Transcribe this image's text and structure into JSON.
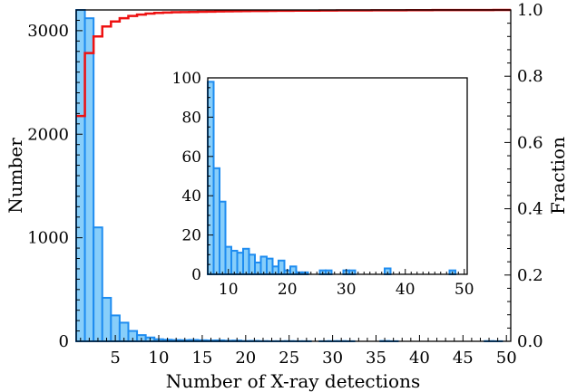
{
  "chart_data": [
    {
      "type": "bar",
      "role": "main-histogram",
      "xlabel": "Number of X-ray detections",
      "ylabel": "Number",
      "y2label": "Fraction",
      "xlim": [
        0.5,
        50.5
      ],
      "ylim": [
        0,
        3200
      ],
      "y2lim": [
        0,
        1.0
      ],
      "xticks": [
        5,
        10,
        15,
        20,
        25,
        30,
        35,
        40,
        45,
        50
      ],
      "yticks": [
        0,
        1000,
        2000,
        3000
      ],
      "y2ticks": [
        0.0,
        0.2,
        0.4,
        0.6,
        0.8,
        1.0
      ],
      "bar_color": "#87cefa",
      "bar_edge_color": "#1e8cf0",
      "bins": [
        1,
        2,
        3,
        4,
        5,
        6,
        7,
        8,
        9,
        10,
        11,
        12,
        13,
        14,
        15,
        16,
        17,
        18,
        19,
        20,
        21,
        22,
        23,
        24,
        25,
        26,
        27,
        28,
        29,
        30,
        31,
        32,
        33,
        34,
        35,
        36,
        37,
        38,
        39,
        40,
        41,
        42,
        43,
        44,
        45,
        46,
        47,
        48,
        49,
        50
      ],
      "values": [
        3230,
        3120,
        1100,
        420,
        250,
        180,
        100,
        60,
        37,
        20,
        15,
        12,
        11,
        13,
        10,
        8,
        9,
        6,
        7,
        3,
        4,
        2,
        1,
        1,
        2,
        1,
        1,
        0,
        1,
        2,
        2,
        1,
        0,
        0,
        0,
        3,
        1,
        0,
        0,
        0,
        0,
        0,
        0,
        0,
        0,
        0,
        0,
        2,
        1,
        0
      ],
      "cumulative_series": {
        "name": "",
        "color": "#ee1111",
        "values": [
          0.68,
          0.87,
          0.92,
          0.95,
          0.965,
          0.975,
          0.982,
          0.986,
          0.989,
          0.991,
          0.992,
          0.993,
          0.9935,
          0.994,
          0.9945,
          0.995,
          0.9955,
          0.996,
          0.9962,
          0.9965,
          0.997,
          0.997,
          0.9972,
          0.9975,
          0.9977,
          0.998,
          0.998,
          0.998,
          0.9982,
          0.9984,
          0.9986,
          0.9986,
          0.9987,
          0.9988,
          0.9989,
          0.999,
          0.999,
          0.999,
          0.9992,
          0.9993,
          0.9994,
          0.9995,
          0.9995,
          0.9996,
          0.9997,
          0.9997,
          0.9998,
          0.9998,
          0.9999,
          1.0
        ]
      }
    },
    {
      "type": "bar",
      "role": "inset-histogram",
      "xlim": [
        6.5,
        50.5
      ],
      "ylim": [
        0,
        100
      ],
      "xticks": [
        10,
        20,
        30,
        40,
        50
      ],
      "yticks": [
        0,
        20,
        40,
        60,
        80,
        100
      ],
      "bins": [
        7,
        8,
        9,
        10,
        11,
        12,
        13,
        14,
        15,
        16,
        17,
        18,
        19,
        20,
        21,
        22,
        23,
        24,
        25,
        26,
        27,
        28,
        29,
        30,
        31,
        32,
        33,
        34,
        35,
        36,
        37,
        38,
        39,
        40,
        41,
        42,
        43,
        44,
        45,
        46,
        47,
        48,
        49,
        50
      ],
      "values": [
        98,
        54,
        37,
        14,
        12,
        11,
        13,
        10,
        6,
        9,
        8,
        4,
        7,
        2,
        4,
        1,
        1,
        0,
        0,
        2,
        2,
        0,
        0,
        2,
        2,
        0,
        0,
        0,
        0,
        0,
        3,
        0,
        0,
        0,
        0,
        0,
        0,
        0,
        0,
        0,
        0,
        2,
        0,
        0
      ]
    }
  ]
}
